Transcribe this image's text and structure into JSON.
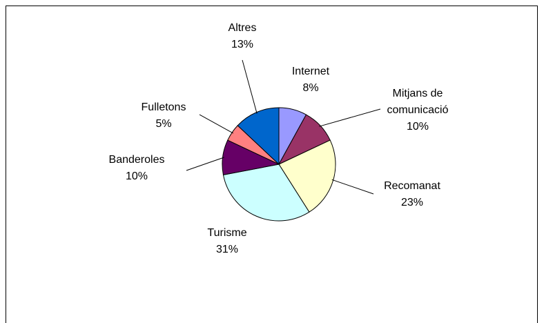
{
  "chart_data": {
    "type": "pie",
    "title": "",
    "slices": [
      {
        "name": "Internet",
        "value": 8,
        "label": "8%",
        "color": "#9999ff",
        "label_lines": [
          "Internet"
        ]
      },
      {
        "name": "Mitjans de comunicació",
        "value": 10,
        "label": "10%",
        "color": "#993366",
        "label_lines": [
          "Mitjans de",
          "comunicació"
        ]
      },
      {
        "name": "Recomanat",
        "value": 23,
        "label": "23%",
        "color": "#ffffcc",
        "label_lines": [
          "Recomanat"
        ]
      },
      {
        "name": "Turisme",
        "value": 31,
        "label": "31%",
        "color": "#ccffff",
        "label_lines": [
          "Turisme"
        ]
      },
      {
        "name": "Banderoles",
        "value": 10,
        "label": "10%",
        "color": "#660066",
        "label_lines": [
          "Banderoles"
        ]
      },
      {
        "name": "Fulletons",
        "value": 5,
        "label": "5%",
        "color": "#ff8080",
        "label_lines": [
          "Fulletons"
        ]
      },
      {
        "name": "Altres",
        "value": 13,
        "label": "13%",
        "color": "#0066cc",
        "label_lines": [
          "Altres"
        ]
      }
    ],
    "start": "12 o'clock",
    "direction": "clockwise",
    "legend": "none"
  }
}
